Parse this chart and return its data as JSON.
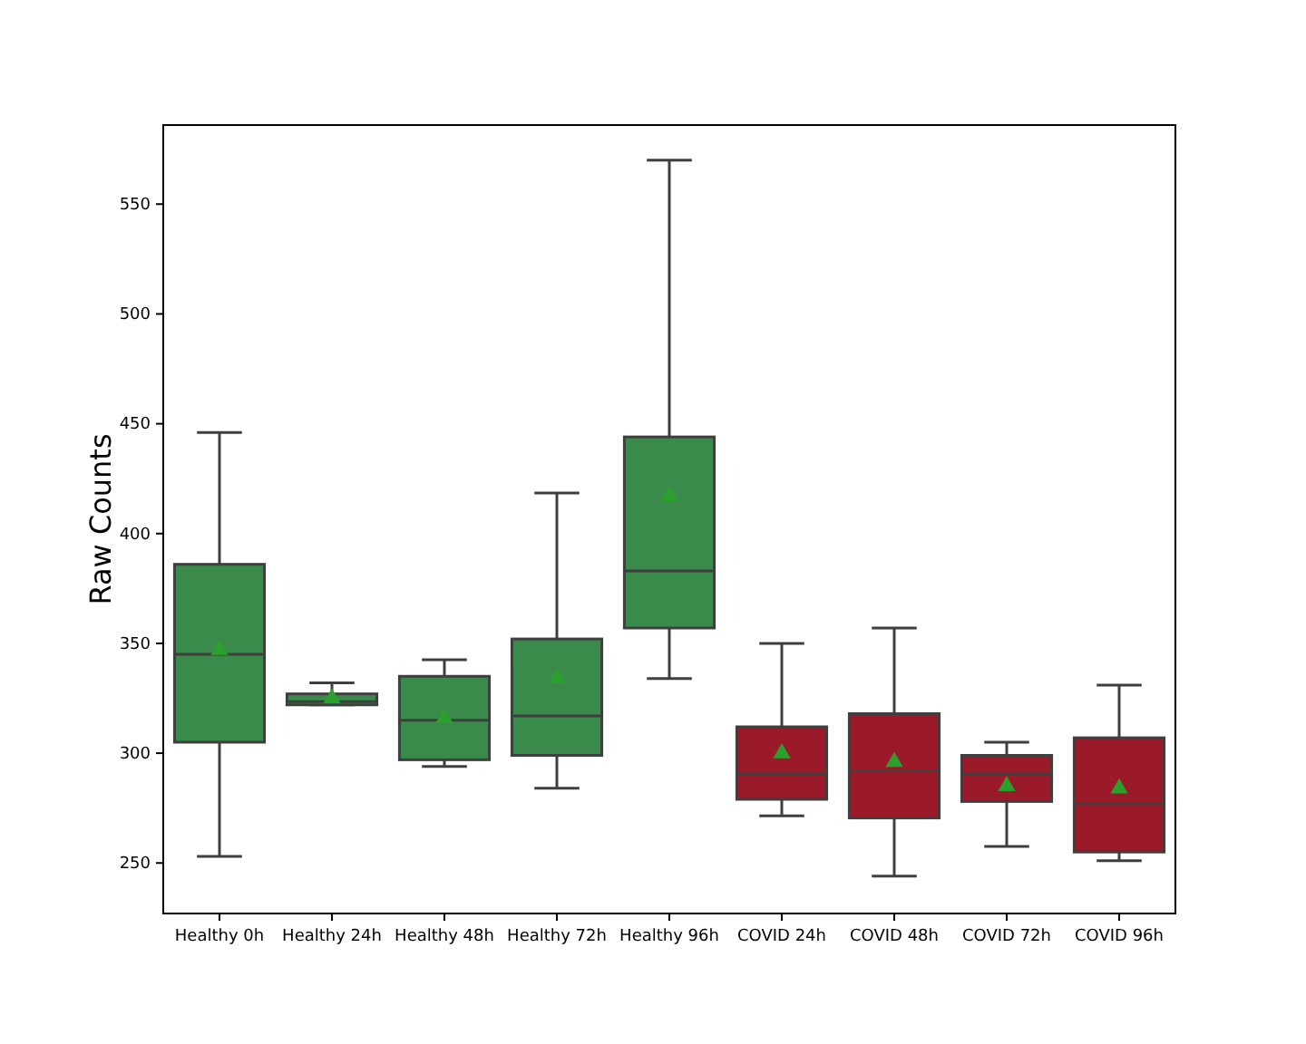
{
  "chart_data": {
    "type": "box",
    "ylabel": "Raw Counts",
    "categories": [
      "Healthy 0h",
      "Healthy 24h",
      "Healthy 48h",
      "Healthy 72h",
      "Healthy 96h",
      "COVID 24h",
      "COVID 48h",
      "COVID 72h",
      "COVID 96h"
    ],
    "colors": [
      "#3a8a4c",
      "#3a8a4c",
      "#3a8a4c",
      "#3a8a4c",
      "#3a8a4c",
      "#9b1a2a",
      "#9b1a2a",
      "#9b1a2a",
      "#9b1a2a"
    ],
    "marker": "triangle",
    "boxes": [
      {
        "low": 253,
        "q1": 305,
        "median": 345,
        "q3": 386,
        "high": 446,
        "mean": 347
      },
      {
        "low": 322,
        "q1": 322,
        "median": 323.5,
        "q3": 327,
        "high": 332,
        "mean": 325
      },
      {
        "low": 294,
        "q1": 297,
        "median": 315,
        "q3": 335,
        "high": 342.5,
        "mean": 316
      },
      {
        "low": 284,
        "q1": 299,
        "median": 317,
        "q3": 352,
        "high": 418.5,
        "mean": 334
      },
      {
        "low": 334,
        "q1": 357,
        "median": 383,
        "q3": 444,
        "high": 570,
        "mean": 417
      },
      {
        "low": 271.5,
        "q1": 279,
        "median": 290.5,
        "q3": 312,
        "high": 350,
        "mean": 300
      },
      {
        "low": 244,
        "q1": 270.5,
        "median": 292,
        "q3": 318,
        "high": 357,
        "mean": 296
      },
      {
        "low": 257.5,
        "q1": 278,
        "median": 290.5,
        "q3": 299,
        "high": 305,
        "mean": 285
      },
      {
        "low": 251,
        "q1": 255,
        "median": 277,
        "q3": 307,
        "high": 331,
        "mean": 284
      }
    ],
    "ylim": [
      227,
      586
    ],
    "yticks": [
      250,
      300,
      350,
      400,
      450,
      500,
      550
    ],
    "grid": false
  }
}
